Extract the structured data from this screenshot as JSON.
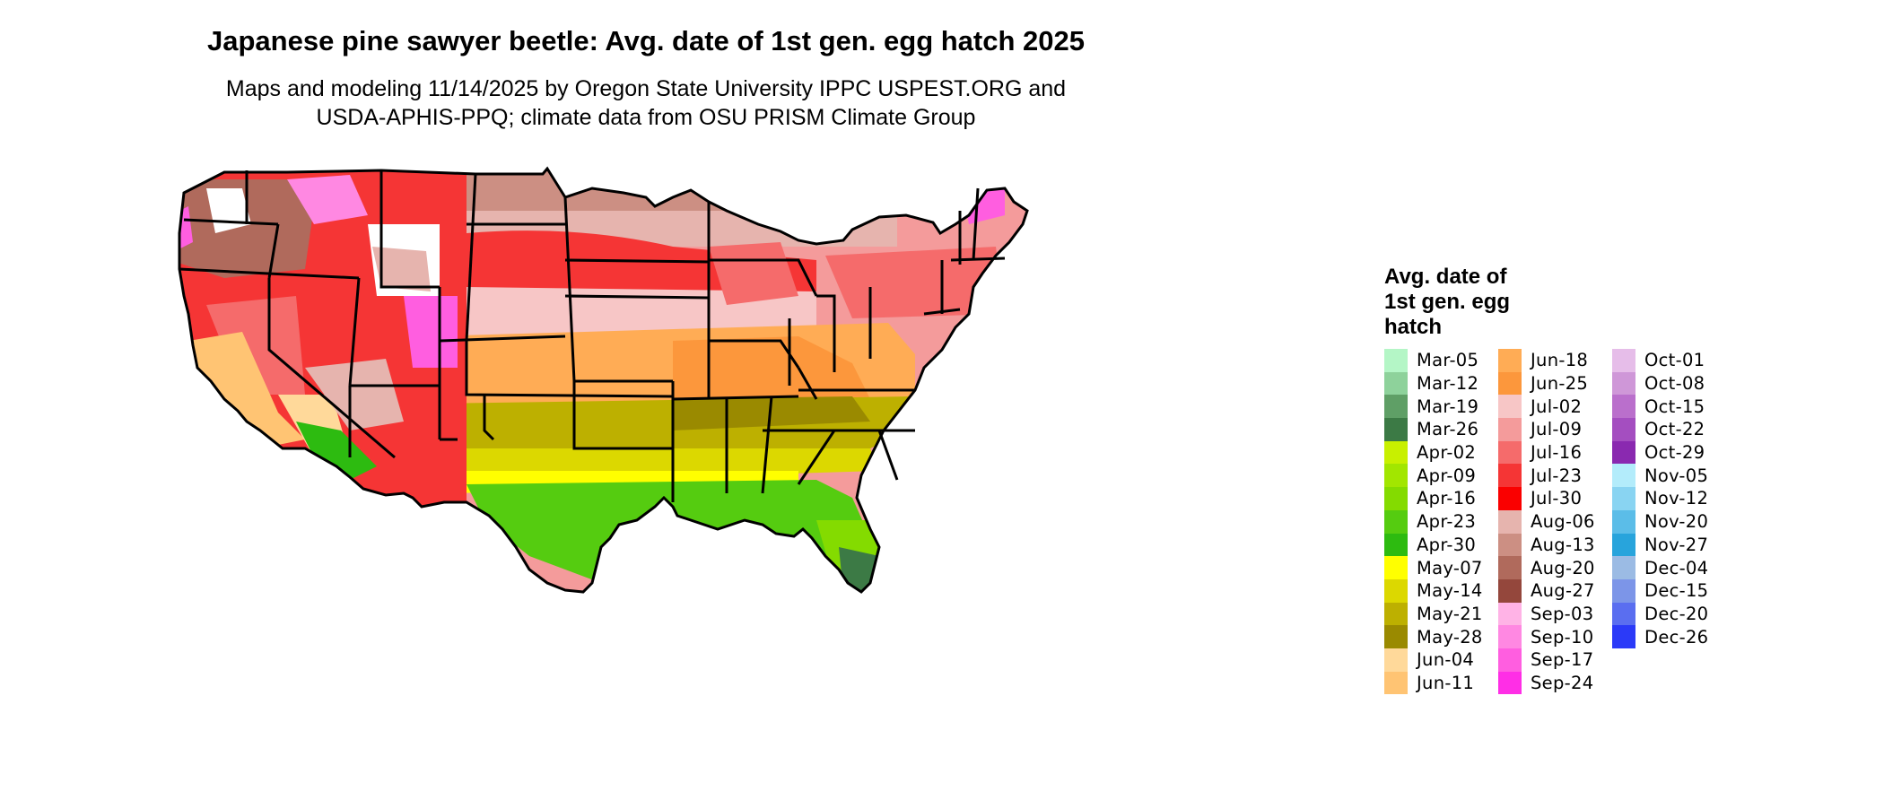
{
  "title": "Japanese pine sawyer beetle: Avg. date of 1st gen. egg hatch 2025",
  "subtitle_line1": "Maps and modeling 11/14/2025 by Oregon State University IPPC USPEST.ORG and",
  "subtitle_line2": "USDA-APHIS-PPQ; climate data from OSU PRISM Climate Group",
  "legend": {
    "title_line1": "Avg. date of",
    "title_line2": "1st gen. egg",
    "title_line3": "hatch",
    "columns": [
      [
        {
          "label": "Mar-05",
          "color": "#b4f6c6"
        },
        {
          "label": "Mar-12",
          "color": "#8ed29b"
        },
        {
          "label": "Mar-19",
          "color": "#5f9f66"
        },
        {
          "label": "Mar-26",
          "color": "#3c7a45"
        },
        {
          "label": "Apr-02",
          "color": "#c8f000"
        },
        {
          "label": "Apr-09",
          "color": "#a2e600"
        },
        {
          "label": "Apr-16",
          "color": "#84db00"
        },
        {
          "label": "Apr-23",
          "color": "#55cc10"
        },
        {
          "label": "Apr-30",
          "color": "#2dbb10"
        },
        {
          "label": "May-07",
          "color": "#ffff00"
        },
        {
          "label": "May-14",
          "color": "#dcd800"
        },
        {
          "label": "May-21",
          "color": "#bdb000"
        },
        {
          "label": "May-28",
          "color": "#9a8a00"
        },
        {
          "label": "Jun-04",
          "color": "#ffd99a"
        },
        {
          "label": "Jun-11",
          "color": "#ffc473"
        }
      ],
      [
        {
          "label": "Jun-18",
          "color": "#ffac55"
        },
        {
          "label": "Jun-25",
          "color": "#fc973c"
        },
        {
          "label": "Jul-02",
          "color": "#f7c6c6"
        },
        {
          "label": "Jul-09",
          "color": "#f49b9b"
        },
        {
          "label": "Jul-16",
          "color": "#f56b6b"
        },
        {
          "label": "Jul-23",
          "color": "#f53535"
        },
        {
          "label": "Jul-30",
          "color": "#fa0000"
        },
        {
          "label": "Aug-06",
          "color": "#e6b4ae"
        },
        {
          "label": "Aug-13",
          "color": "#cc8f83"
        },
        {
          "label": "Aug-20",
          "color": "#b06a5c"
        },
        {
          "label": "Aug-27",
          "color": "#94473c"
        },
        {
          "label": "Sep-03",
          "color": "#ffb3e6"
        },
        {
          "label": "Sep-10",
          "color": "#ff88e2"
        },
        {
          "label": "Sep-17",
          "color": "#ff5ee0"
        },
        {
          "label": "Sep-24",
          "color": "#ff2ee6"
        }
      ],
      [
        {
          "label": "Oct-01",
          "color": "#e6bde9"
        },
        {
          "label": "Oct-08",
          "color": "#cf97d8"
        },
        {
          "label": "Oct-15",
          "color": "#ba6fcc"
        },
        {
          "label": "Oct-22",
          "color": "#a44ec0"
        },
        {
          "label": "Oct-29",
          "color": "#8a29b0"
        },
        {
          "label": "Nov-05",
          "color": "#b3ecfb"
        },
        {
          "label": "Nov-12",
          "color": "#89d4f2"
        },
        {
          "label": "Nov-20",
          "color": "#5bbde8"
        },
        {
          "label": "Nov-27",
          "color": "#28a4dc"
        },
        {
          "label": "Dec-04",
          "color": "#9bbbe4"
        },
        {
          "label": "Dec-15",
          "color": "#7c95e8"
        },
        {
          "label": "Dec-20",
          "color": "#5a6ef0"
        },
        {
          "label": "Dec-26",
          "color": "#2b3af8"
        }
      ]
    ]
  }
}
